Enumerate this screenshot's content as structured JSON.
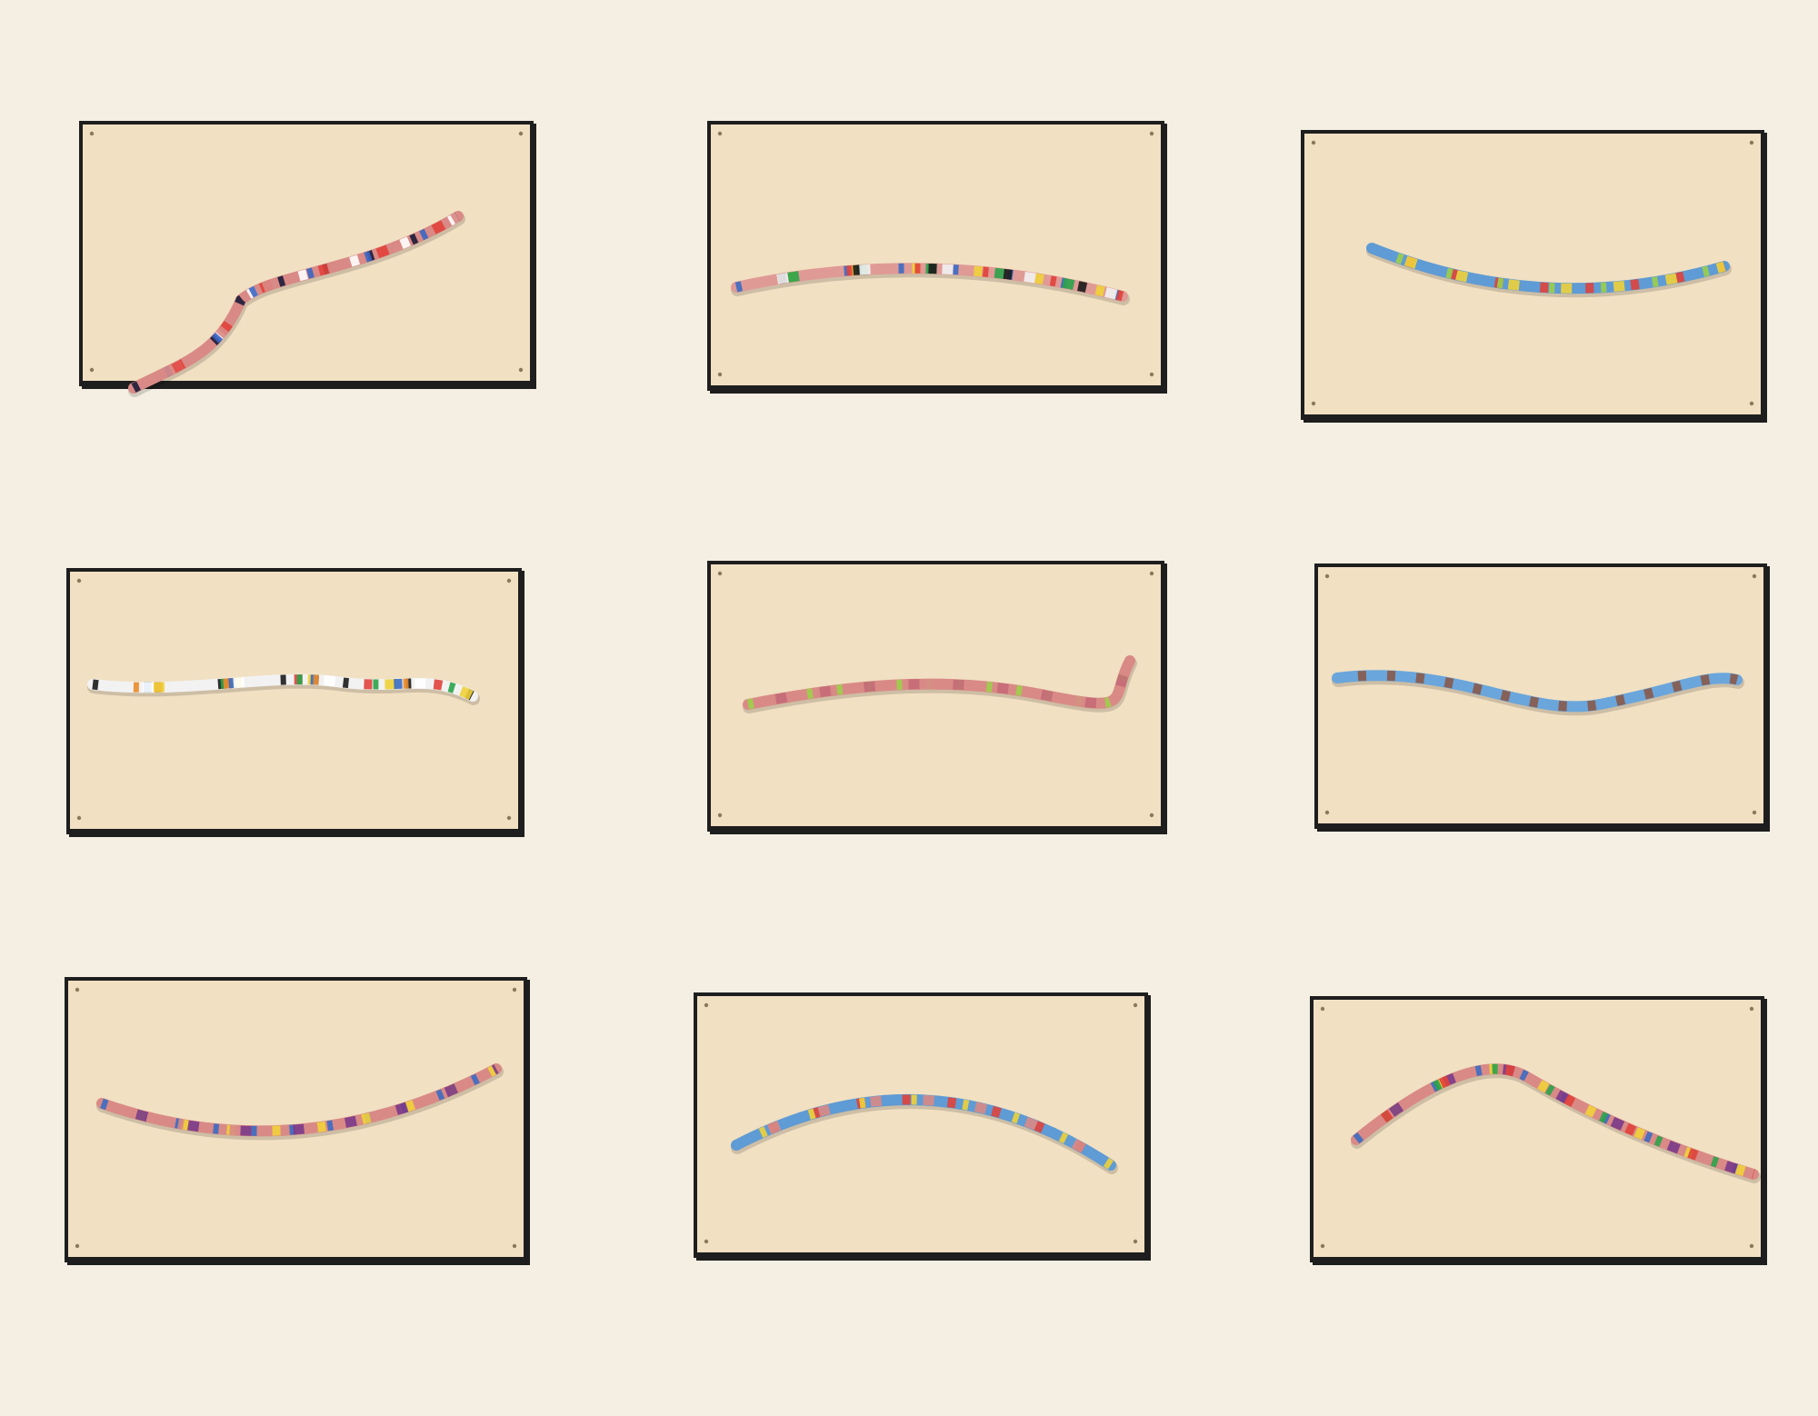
{
  "colors": {
    "mount_board": "#f4efe2",
    "card": "#f1e0c2",
    "frame_border": "#1e1e1e",
    "stick_pink": "#d98a86",
    "stick_blue": "#5f9bd4",
    "stick_green": "#9ccf4a"
  },
  "panels": [
    {
      "stick_base": "#d98a86",
      "stripes": [
        "#1b1b3a",
        "#ffffff",
        "#e0433b",
        "#3a66c4",
        "#d98a86"
      ]
    },
    {
      "stick_base": "#e09a96",
      "stripes": [
        "#3b6cc2",
        "#f0d23a",
        "#2aa34a",
        "#e0433b",
        "#1b1b1b",
        "#f2f2f2"
      ]
    },
    {
      "stick_base": "#5f9bd4",
      "stripes": [
        "#5f9bd4",
        "#e0433b",
        "#f0d23a",
        "#9ccf4a"
      ]
    },
    {
      "stick_base": "#f2f2f2",
      "stripes": [
        "#1b1b1b",
        "#e0433b",
        "#f0d23a",
        "#2aa34a",
        "#3b6cc2",
        "#ffffff",
        "#e98b2a"
      ]
    },
    {
      "stick_base": "#d98a86",
      "stripes": [
        "#9ccf4a",
        "#d98a86",
        "#c46a78"
      ]
    },
    {
      "stick_base": "#6aa6dc",
      "stripes": [
        "#6aa6dc",
        "#8a5a4a"
      ]
    },
    {
      "stick_base": "#d98a86",
      "stripes": [
        "#3b6cc2",
        "#f0d23a",
        "#7a3a8a",
        "#d98a86"
      ]
    },
    {
      "stick_base": "#5f9bd4",
      "stripes": [
        "#5f9bd4",
        "#e0433b",
        "#d98a86",
        "#f0d23a"
      ]
    },
    {
      "stick_base": "#d98a86",
      "stripes": [
        "#3b6cc2",
        "#f0d23a",
        "#7a3a8a",
        "#2aa34a",
        "#e0433b"
      ]
    }
  ]
}
